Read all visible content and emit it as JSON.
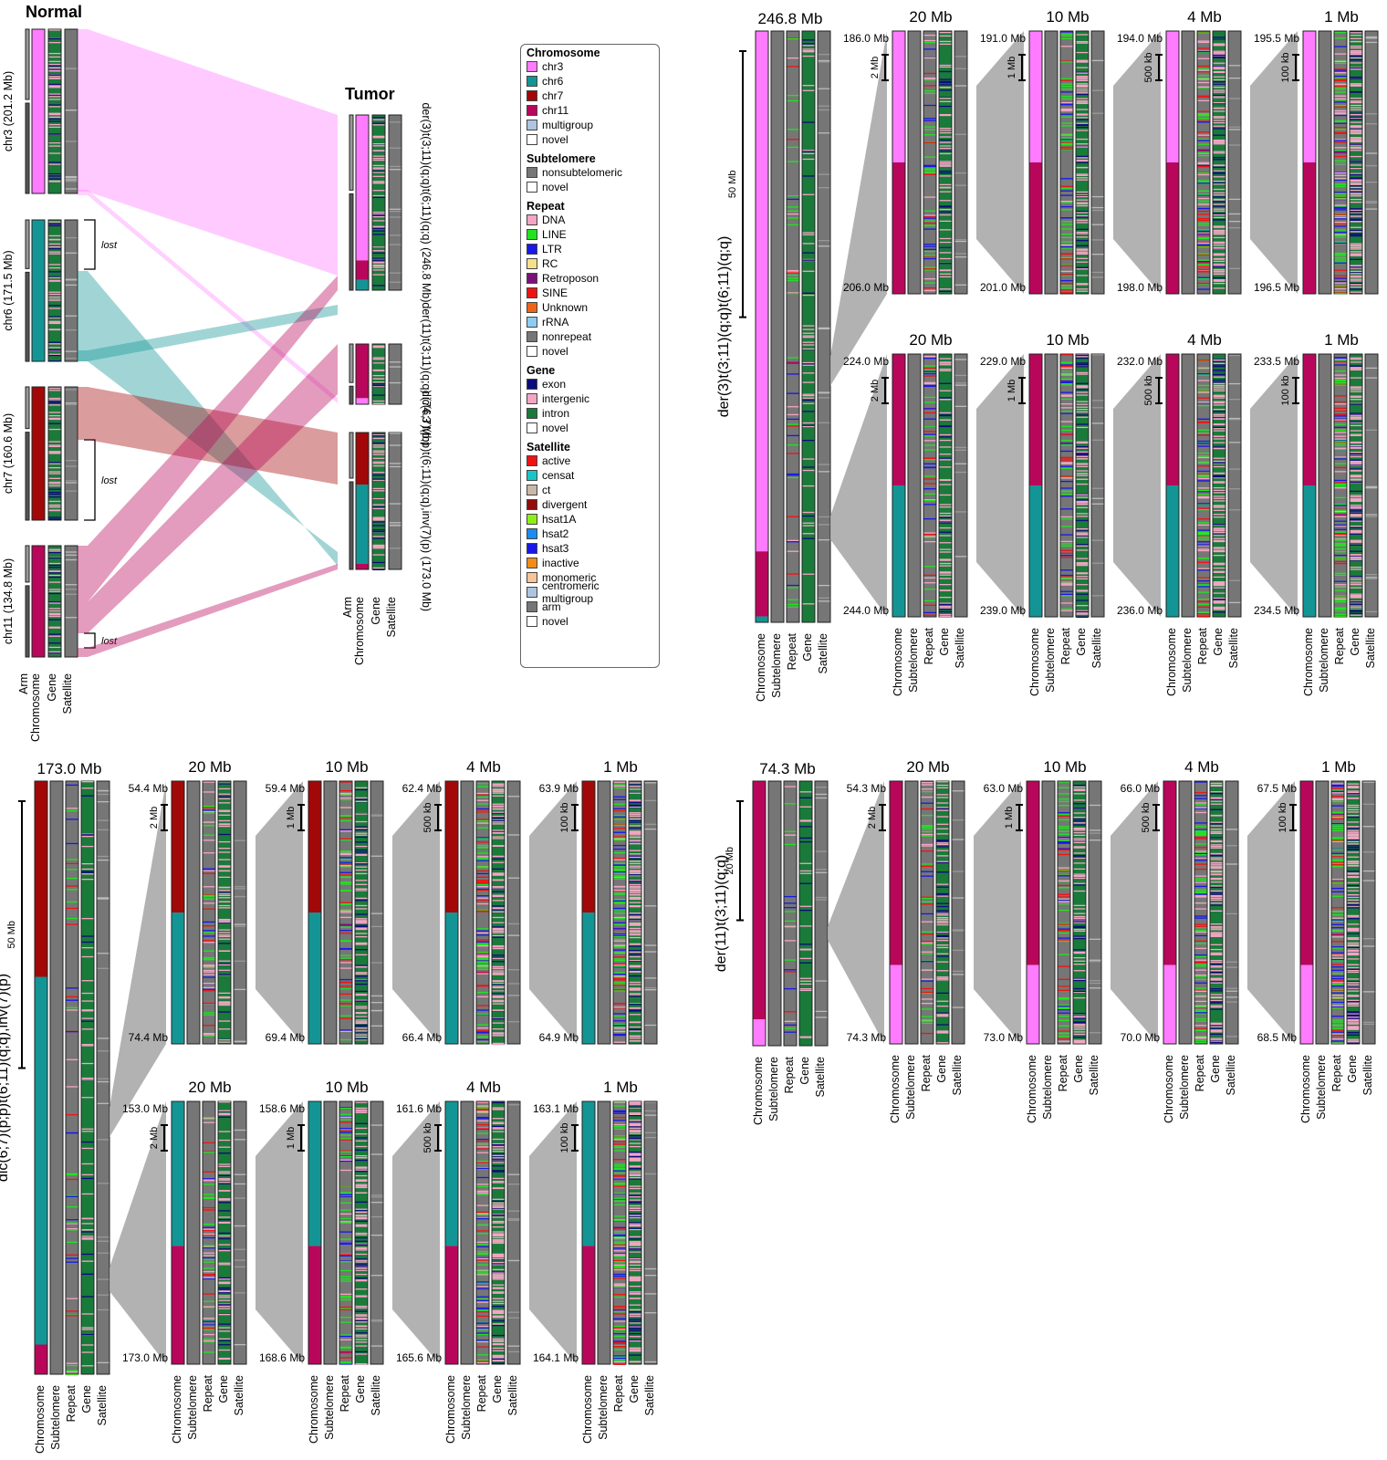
{
  "titles": {
    "normal": "Normal",
    "tumor": "Tumor"
  },
  "normal_chromosomes": [
    {
      "label": "chr3 (201.2 Mb)",
      "color": "#ff7bff",
      "lost_label": ""
    },
    {
      "label": "chr6 (171.5 Mb)",
      "color": "#149595",
      "lost_label": "lost"
    },
    {
      "label": "chr7 (160.6 Mb)",
      "color": "#a20808",
      "lost_label": "lost"
    },
    {
      "label": "chr11 (134.8 Mb)",
      "color": "#b8075a",
      "lost_label": "lost"
    }
  ],
  "normal_track_labels": [
    "Arm",
    "Chromosome",
    "Gene",
    "Satellite"
  ],
  "tumor_chromosomes": [
    {
      "label": "der(3)t(3;11)(q;q)t(6;11)(q;q) (246.8 Mb)"
    },
    {
      "label": "der(11)t(3;11)(q;q) (74.3 Mb)"
    },
    {
      "label": "dic(6;7)(p;p)t(6;11)(q;q),inv(7)(p) (173.0 Mb)"
    }
  ],
  "tumor_track_labels": [
    "Arm",
    "Chromosome",
    "Gene",
    "Satellite"
  ],
  "legend": {
    "sections": [
      {
        "title": "Chromosome",
        "items": [
          {
            "label": "chr3",
            "color": "#ff7bff"
          },
          {
            "label": "chr6",
            "color": "#149595"
          },
          {
            "label": "chr7",
            "color": "#a20808"
          },
          {
            "label": "chr11",
            "color": "#b8075a"
          },
          {
            "label": "multigroup",
            "color": "#aec4e0"
          },
          {
            "label": "novel",
            "color": "#ffffff"
          }
        ]
      },
      {
        "title": "Subtelomere",
        "items": [
          {
            "label": "nonsubtelomeric",
            "color": "#767676"
          },
          {
            "label": "novel",
            "color": "#ffffff"
          }
        ]
      },
      {
        "title": "Repeat",
        "items": [
          {
            "label": "DNA",
            "color": "#f2a6c3"
          },
          {
            "label": "LINE",
            "color": "#22e322"
          },
          {
            "label": "LTR",
            "color": "#1818e8"
          },
          {
            "label": "RC",
            "color": "#f7e08c"
          },
          {
            "label": "Retroposon",
            "color": "#7a127a"
          },
          {
            "label": "SINE",
            "color": "#ee1414"
          },
          {
            "label": "Unknown",
            "color": "#f06418"
          },
          {
            "label": "rRNA",
            "color": "#8ecdf0"
          },
          {
            "label": "nonrepeat",
            "color": "#767676"
          },
          {
            "label": "novel",
            "color": "#ffffff"
          }
        ]
      },
      {
        "title": "Gene",
        "items": [
          {
            "label": "exon",
            "color": "#0c0c7a"
          },
          {
            "label": "intergenic",
            "color": "#f2a6c3"
          },
          {
            "label": "intron",
            "color": "#1a7a3a"
          },
          {
            "label": "novel",
            "color": "#ffffff"
          }
        ]
      },
      {
        "title": "Satellite",
        "items": [
          {
            "label": "active",
            "color": "#ee1414"
          },
          {
            "label": "censat",
            "color": "#18c6c6"
          },
          {
            "label": "ct",
            "color": "#c8b8a8"
          },
          {
            "label": "divergent",
            "color": "#920c0c"
          },
          {
            "label": "hsat1A",
            "color": "#8cf018"
          },
          {
            "label": "hsat2",
            "color": "#1c8cf0"
          },
          {
            "label": "hsat3",
            "color": "#1818e8"
          },
          {
            "label": "inactive",
            "color": "#f28c18"
          },
          {
            "label": "monomeric",
            "color": "#f7c498"
          },
          {
            "label": "centromeric multigroup",
            "color": "#aec4e0"
          },
          {
            "label": "arm",
            "color": "#767676"
          },
          {
            "label": "novel",
            "color": "#ffffff"
          }
        ]
      }
    ]
  },
  "zoom_track_labels": [
    "Chromosome",
    "Subtelomere",
    "Repeat",
    "Gene",
    "Satellite"
  ],
  "zoom_panels": [
    {
      "name": "der3",
      "chrom_label": "der(3)t(3;11)(q;q)t(6;11)(q;q)",
      "full_title": "246.8 Mb",
      "full_scalebar": "50 Mb",
      "rows": [
        [
          {
            "title": "20 Mb",
            "start": "186.0 Mb",
            "end": "206.0 Mb",
            "scalebar": "2 Mb"
          },
          {
            "title": "10 Mb",
            "start": "191.0 Mb",
            "end": "201.0 Mb",
            "scalebar": "1 Mb"
          },
          {
            "title": "4 Mb",
            "start": "194.0 Mb",
            "end": "198.0 Mb",
            "scalebar": "500 kb"
          },
          {
            "title": "1 Mb",
            "start": "195.5 Mb",
            "end": "196.5 Mb",
            "scalebar": "100 kb"
          }
        ],
        [
          {
            "title": "20 Mb",
            "start": "224.0 Mb",
            "end": "244.0 Mb",
            "scalebar": "2 Mb"
          },
          {
            "title": "10 Mb",
            "start": "229.0 Mb",
            "end": "239.0 Mb",
            "scalebar": "1 Mb"
          },
          {
            "title": "4 Mb",
            "start": "232.0 Mb",
            "end": "236.0 Mb",
            "scalebar": "500 kb"
          },
          {
            "title": "1 Mb",
            "start": "233.5 Mb",
            "end": "234.5 Mb",
            "scalebar": "100 kb"
          }
        ]
      ]
    },
    {
      "name": "dic",
      "chrom_label": "dic(6;7)(p;p)t(6;11)(q;q),inv(7)(p)",
      "full_title": "173.0 Mb",
      "full_scalebar": "50 Mb",
      "rows": [
        [
          {
            "title": "20 Mb",
            "start": "54.4 Mb",
            "end": "74.4 Mb",
            "scalebar": "2 Mb"
          },
          {
            "title": "10 Mb",
            "start": "59.4 Mb",
            "end": "69.4 Mb",
            "scalebar": "1 Mb"
          },
          {
            "title": "4 Mb",
            "start": "62.4 Mb",
            "end": "66.4 Mb",
            "scalebar": "500 kb"
          },
          {
            "title": "1 Mb",
            "start": "63.9 Mb",
            "end": "64.9 Mb",
            "scalebar": "100 kb"
          }
        ],
        [
          {
            "title": "20 Mb",
            "start": "153.0 Mb",
            "end": "173.0 Mb",
            "scalebar": "2 Mb"
          },
          {
            "title": "10 Mb",
            "start": "158.6 Mb",
            "end": "168.6 Mb",
            "scalebar": "1 Mb"
          },
          {
            "title": "4 Mb",
            "start": "161.6 Mb",
            "end": "165.6 Mb",
            "scalebar": "500 kb"
          },
          {
            "title": "1 Mb",
            "start": "163.1 Mb",
            "end": "164.1 Mb",
            "scalebar": "100 kb"
          }
        ]
      ]
    },
    {
      "name": "der11",
      "chrom_label": "der(11)t(3;11)(q;q)",
      "full_title": "74.3 Mb",
      "full_scalebar": "20 Mb",
      "rows": [
        [
          {
            "title": "20 Mb",
            "start": "54.3 Mb",
            "end": "74.3 Mb",
            "scalebar": "2 Mb"
          },
          {
            "title": "10 Mb",
            "start": "63.0 Mb",
            "end": "73.0 Mb",
            "scalebar": "1 Mb"
          },
          {
            "title": "4 Mb",
            "start": "66.0 Mb",
            "end": "70.0 Mb",
            "scalebar": "500 kb"
          },
          {
            "title": "1 Mb",
            "start": "67.5 Mb",
            "end": "68.5 Mb",
            "scalebar": "100 kb"
          }
        ]
      ]
    }
  ]
}
